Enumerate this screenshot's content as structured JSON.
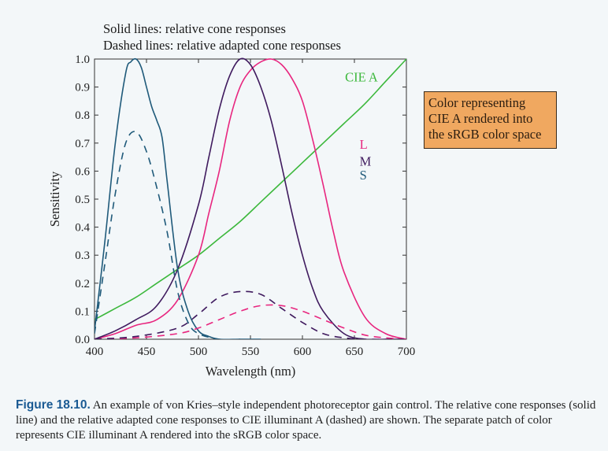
{
  "annotations": {
    "line1": "Solid lines: relative cone responses",
    "line2": "Dashed lines: relative adapted cone responses"
  },
  "patch": {
    "lines": [
      "Color representing",
      "CIE A rendered into",
      "the sRGB color space"
    ],
    "color": "#f0a860"
  },
  "caption": {
    "label": "Figure 18.10.",
    "text": " An example of von Kries–style independent photoreceptor gain control. The relative cone responses (solid line) and the relative adapted cone responses to CIE illuminant A (dashed) are shown. The separate patch of color represents CIE illuminant A rendered into the sRGB color space."
  },
  "colors": {
    "L": "#e8267f",
    "M": "#3f1a5e",
    "S": "#1f5a7a",
    "CIE_A": "#3cb83c"
  },
  "chart_data": {
    "type": "line",
    "xlabel": "Wavelength (nm)",
    "ylabel": "Sensitivity",
    "xlim": [
      400,
      700
    ],
    "ylim": [
      0,
      1
    ],
    "xticks": [
      "400",
      "450",
      "500",
      "550",
      "600",
      "650",
      "700"
    ],
    "yticks": [
      "0.0",
      "0.1",
      "0.2",
      "0.3",
      "0.4",
      "0.5",
      "0.6",
      "0.7",
      "0.8",
      "0.9",
      "1.0"
    ],
    "legend": [
      "L",
      "M",
      "S"
    ],
    "legend_position": "right",
    "series": [
      {
        "name": "CIE A",
        "style": "solid",
        "color": "#3cb83c",
        "x": [
          400,
          420,
          440,
          460,
          480,
          500,
          520,
          540,
          560,
          580,
          600,
          620,
          640,
          660,
          680,
          700
        ],
        "y": [
          0.07,
          0.11,
          0.15,
          0.2,
          0.25,
          0.3,
          0.36,
          0.42,
          0.49,
          0.56,
          0.63,
          0.7,
          0.77,
          0.84,
          0.92,
          1.0
        ]
      },
      {
        "name": "L",
        "style": "solid",
        "color": "#e8267f",
        "x": [
          400,
          420,
          440,
          460,
          480,
          500,
          510,
          520,
          530,
          540,
          550,
          560,
          570,
          580,
          590,
          600,
          610,
          620,
          630,
          640,
          660,
          680,
          700
        ],
        "y": [
          0.0,
          0.02,
          0.05,
          0.07,
          0.14,
          0.3,
          0.45,
          0.6,
          0.78,
          0.9,
          0.96,
          0.99,
          1.0,
          0.98,
          0.93,
          0.85,
          0.71,
          0.55,
          0.38,
          0.24,
          0.08,
          0.02,
          0.0
        ]
      },
      {
        "name": "M",
        "style": "solid",
        "color": "#3f1a5e",
        "x": [
          400,
          420,
          440,
          460,
          480,
          500,
          510,
          520,
          530,
          540,
          550,
          560,
          570,
          580,
          590,
          600,
          610,
          620,
          640,
          660,
          680,
          700
        ],
        "y": [
          0.0,
          0.03,
          0.07,
          0.12,
          0.25,
          0.48,
          0.65,
          0.82,
          0.94,
          1.0,
          0.98,
          0.9,
          0.78,
          0.62,
          0.45,
          0.3,
          0.18,
          0.1,
          0.02,
          0.0,
          0.0,
          0.0
        ]
      },
      {
        "name": "S",
        "style": "solid",
        "color": "#1f5a7a",
        "x": [
          400,
          410,
          420,
          430,
          435,
          440,
          445,
          450,
          455,
          460,
          465,
          470,
          480,
          490,
          500,
          510,
          520,
          540,
          560
        ],
        "y": [
          0.03,
          0.35,
          0.7,
          0.95,
          0.99,
          1.0,
          0.97,
          0.9,
          0.83,
          0.78,
          0.72,
          0.56,
          0.25,
          0.1,
          0.03,
          0.01,
          0.0,
          0.0,
          0.0
        ]
      },
      {
        "name": "L adapted",
        "style": "dashed",
        "color": "#e8267f",
        "x": [
          400,
          440,
          480,
          500,
          520,
          540,
          560,
          580,
          600,
          620,
          640,
          660,
          680,
          700
        ],
        "y": [
          0.0,
          0.005,
          0.02,
          0.04,
          0.07,
          0.1,
          0.12,
          0.12,
          0.1,
          0.07,
          0.04,
          0.015,
          0.005,
          0.0
        ]
      },
      {
        "name": "M adapted",
        "style": "dashed",
        "color": "#3f1a5e",
        "x": [
          400,
          440,
          480,
          500,
          520,
          540,
          560,
          580,
          600,
          620,
          640,
          660,
          700
        ],
        "y": [
          0.0,
          0.01,
          0.04,
          0.09,
          0.15,
          0.17,
          0.16,
          0.11,
          0.06,
          0.02,
          0.005,
          0.0,
          0.0
        ]
      },
      {
        "name": "S adapted",
        "style": "dashed",
        "color": "#1f5a7a",
        "x": [
          400,
          410,
          420,
          430,
          440,
          450,
          460,
          470,
          480,
          490,
          500,
          520,
          540
        ],
        "y": [
          0.02,
          0.27,
          0.52,
          0.7,
          0.74,
          0.67,
          0.54,
          0.38,
          0.17,
          0.06,
          0.02,
          0.0,
          0.0
        ]
      }
    ],
    "labels": [
      {
        "text": "CIE A",
        "x": 641,
        "y": 0.92,
        "color": "#3cb83c"
      },
      {
        "text": "L",
        "x": 655,
        "y": 0.68,
        "color": "#e8267f"
      },
      {
        "text": "M",
        "x": 655,
        "y": 0.62,
        "color": "#3f1a5e"
      },
      {
        "text": "S",
        "x": 655,
        "y": 0.57,
        "color": "#1f5a7a"
      }
    ],
    "grid": false
  }
}
